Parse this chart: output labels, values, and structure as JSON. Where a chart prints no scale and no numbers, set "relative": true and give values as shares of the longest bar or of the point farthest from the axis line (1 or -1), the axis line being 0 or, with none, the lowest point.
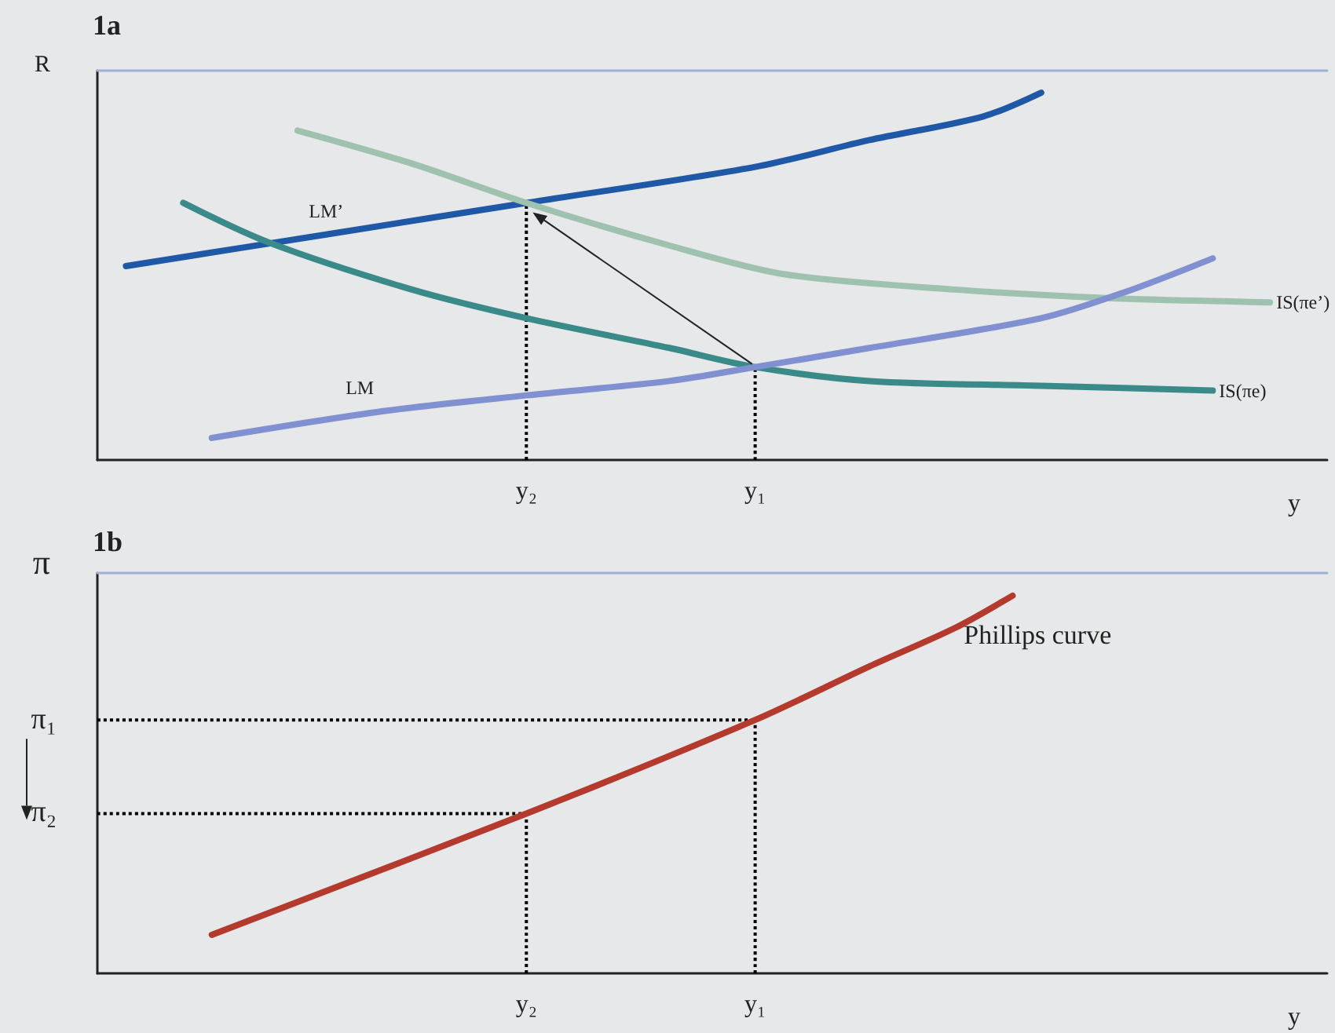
{
  "chart_data": [
    {
      "type": "line",
      "title": "1a",
      "xlabel": "y",
      "ylabel": "R",
      "relative": true,
      "legend": false,
      "grid": false,
      "marker": "none",
      "categories": [
        null,
        null,
        null,
        null,
        null,
        null,
        null,
        null,
        null,
        null,
        null,
        null,
        null,
        null,
        null,
        "y₂",
        null,
        null,
        null,
        null,
        null,
        null,
        null,
        "y₁",
        null,
        null,
        null,
        null,
        null,
        null,
        null,
        null,
        null,
        null,
        null,
        null,
        null,
        null,
        null,
        null,
        null,
        null,
        null,
        null
      ],
      "series": [
        {
          "name": "LM’",
          "color": "#1f58a6",
          "values": [
            null,
            0.528,
            null,
            null,
            null,
            null,
            null,
            null,
            0.614,
            null,
            null,
            null,
            null,
            null,
            null,
            0.7,
            null,
            null,
            null,
            null,
            null,
            null,
            null,
            0.798,
            null,
            null,
            null,
            0.871,
            null,
            null,
            null,
            0.936,
            null,
            1,
            null,
            null,
            null,
            null,
            null,
            null,
            null,
            null,
            null,
            null
          ]
        },
        {
          "name": "IS(πe’)",
          "color": "#9fc2b0",
          "values": [
            null,
            null,
            null,
            null,
            null,
            null,
            null,
            0.897,
            null,
            null,
            null,
            0.807,
            null,
            null,
            null,
            0.7,
            null,
            null,
            null,
            null,
            0.584,
            null,
            null,
            null,
            0.506,
            null,
            null,
            null,
            null,
            null,
            0.464,
            null,
            null,
            null,
            null,
            0.442,
            null,
            null,
            null,
            null,
            null,
            0.429,
            null,
            null
          ]
        },
        {
          "name": "IS(πe)",
          "color": "#3a8a8a",
          "values": [
            null,
            null,
            null,
            0.7,
            null,
            null,
            0.592,
            null,
            null,
            null,
            null,
            0.464,
            null,
            null,
            null,
            0.386,
            null,
            null,
            null,
            null,
            0.305,
            null,
            null,
            0.253,
            null,
            null,
            null,
            0.215,
            null,
            null,
            null,
            null,
            null,
            0.202,
            null,
            null,
            null,
            null,
            null,
            0.189,
            null,
            null,
            null,
            null
          ]
        },
        {
          "name": "LM",
          "color": "#8090d0",
          "values": [
            null,
            null,
            null,
            null,
            0.06,
            null,
            null,
            null,
            null,
            null,
            0.133,
            null,
            null,
            null,
            null,
            0.176,
            null,
            null,
            null,
            null,
            0.215,
            null,
            null,
            0.253,
            null,
            null,
            null,
            0.305,
            null,
            null,
            null,
            null,
            null,
            0.386,
            null,
            null,
            0.459,
            null,
            null,
            0.549,
            null,
            null,
            null,
            null
          ]
        },
        {
          "color": "#000000",
          "line_style": "dotted",
          "x": [
            "y₂",
            "y₂"
          ],
          "values": [
            0,
            0.7
          ]
        },
        {
          "color": "#000000",
          "line_style": "dotted",
          "x": [
            "y₁",
            "y₁"
          ],
          "values": [
            0,
            0.253
          ]
        }
      ]
    },
    {
      "type": "line",
      "title": "1b",
      "xlabel": "y",
      "ylabel": "π",
      "relative": true,
      "legend": false,
      "grid": false,
      "marker": "none",
      "categories": [
        null,
        null,
        null,
        null,
        null,
        null,
        null,
        null,
        null,
        null,
        null,
        null,
        null,
        null,
        null,
        "y₂",
        null,
        null,
        null,
        null,
        null,
        null,
        null,
        "y₁",
        null,
        null,
        null,
        null,
        null,
        null,
        null,
        null,
        null,
        null,
        null,
        null,
        null,
        null,
        null,
        null,
        null,
        null,
        null,
        null
      ],
      "annotations": [
        "π₁",
        "π₂"
      ],
      "series": [
        {
          "name": "Phillips curve",
          "color": "#b53a2e",
          "values": [
            null,
            null,
            null,
            null,
            0.102,
            null,
            null,
            null,
            null,
            null,
            null,
            null,
            null,
            null,
            null,
            0.423,
            null,
            null,
            null,
            null,
            null,
            null,
            null,
            0.671,
            null,
            null,
            null,
            0.813,
            null,
            null,
            0.915,
            null,
            1,
            null,
            null,
            null,
            null,
            null,
            null,
            null,
            null,
            null,
            null,
            null
          ]
        },
        {
          "color": "#000000",
          "line_style": "dotted",
          "values": [
            0.671,
            null,
            null,
            null,
            null,
            null,
            null,
            null,
            null,
            null,
            null,
            null,
            null,
            null,
            null,
            null,
            null,
            null,
            null,
            null,
            null,
            null,
            null,
            0.671,
            null,
            null,
            null,
            null,
            null,
            null,
            null,
            null,
            null,
            null,
            null,
            null,
            null,
            null,
            null,
            null,
            null,
            null,
            null,
            null
          ]
        },
        {
          "color": "#000000",
          "line_style": "dotted",
          "values": [
            0.423,
            null,
            null,
            null,
            null,
            null,
            null,
            null,
            null,
            null,
            null,
            null,
            null,
            null,
            null,
            0.423,
            null,
            null,
            null,
            null,
            null,
            null,
            null,
            null,
            null,
            null,
            null,
            null,
            null,
            null,
            null,
            null,
            null,
            null,
            null,
            null,
            null,
            null,
            null,
            null,
            null,
            null,
            null,
            null
          ]
        },
        {
          "color": "#000000",
          "line_style": "dotted",
          "x": [
            "y₁",
            "y₁"
          ],
          "values": [
            0,
            0.671
          ]
        },
        {
          "color": "#000000",
          "line_style": "dotted",
          "x": [
            "y₂",
            "y₂"
          ],
          "values": [
            0,
            0.423
          ]
        }
      ]
    }
  ]
}
